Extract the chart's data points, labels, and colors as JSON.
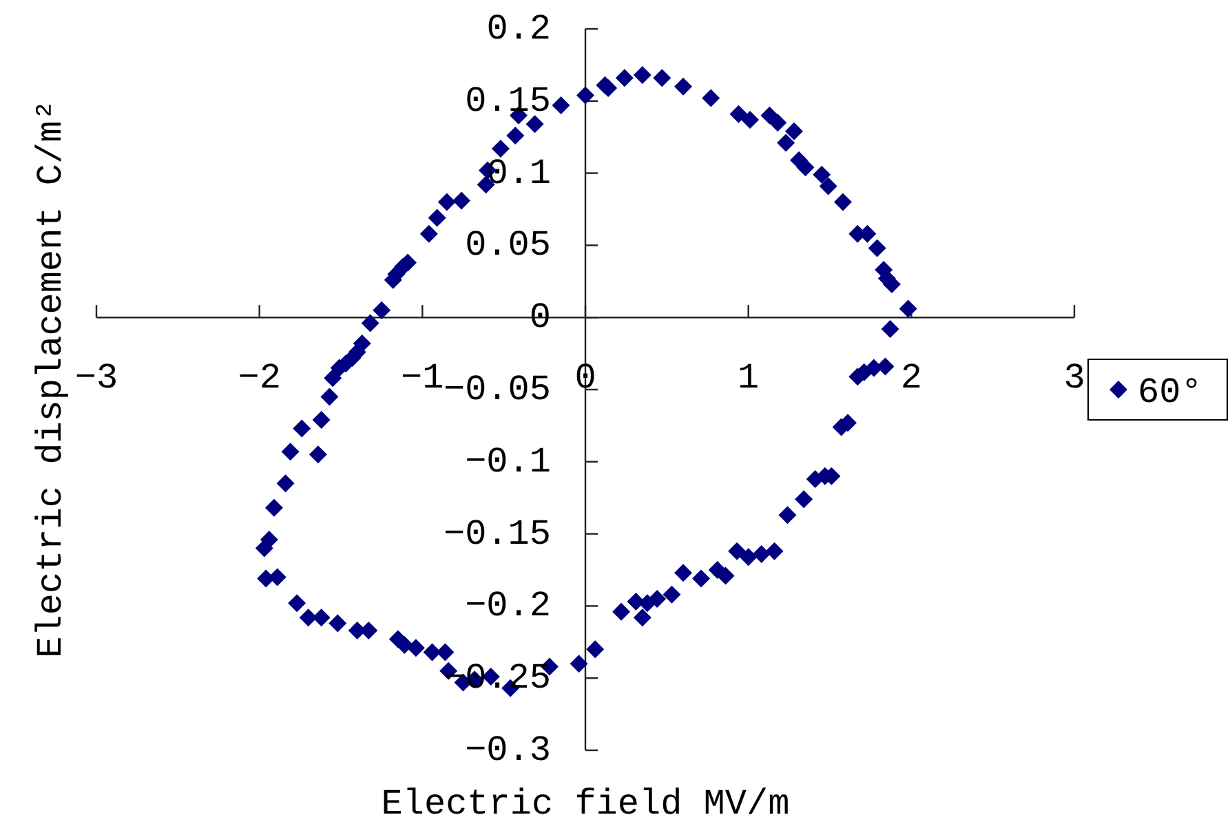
{
  "chart_data": {
    "type": "scatter",
    "xlabel": "Electric field MV/m",
    "ylabel": "Electric displacement C/m²",
    "legend": "right",
    "marker": "diamond",
    "xlim": [
      -3,
      3
    ],
    "ylim": [
      -0.3,
      0.2
    ],
    "xticks": [
      -3,
      -2,
      -1,
      0,
      1,
      2,
      3
    ],
    "yticks": [
      -0.3,
      -0.25,
      -0.2,
      -0.15,
      -0.1,
      -0.05,
      0,
      0.05,
      0.1,
      0.15,
      0.2
    ],
    "x": [
      -1.37,
      -1.4,
      -1.43,
      -1.47,
      -1.51,
      -1.55,
      -1.57,
      -1.62,
      -1.74,
      -1.64,
      -1.81,
      -1.84,
      -1.91,
      -1.94,
      -1.97,
      -1.96,
      -1.89,
      -1.77,
      -1.7,
      -1.62,
      -1.52,
      -1.4,
      -1.33,
      -1.15,
      -1.11,
      -1.04,
      -0.94,
      -0.86,
      -0.84,
      -0.75,
      -0.68,
      -0.58,
      -0.46,
      -0.22,
      -0.04,
      0.06,
      0.22,
      0.31,
      0.35,
      0.38,
      0.44,
      0.53,
      0.6,
      0.71,
      0.81,
      0.86,
      0.93,
      1.0,
      1.08,
      1.16,
      1.24,
      1.34,
      1.41,
      1.47,
      1.51,
      1.57,
      1.61,
      1.67,
      1.71,
      1.77,
      1.84,
      1.87,
      1.98,
      1.88,
      1.85,
      1.83,
      1.79,
      1.73,
      1.67,
      1.58,
      1.49,
      1.45,
      1.35,
      1.31,
      1.28,
      1.23,
      1.18,
      1.13,
      1.01,
      0.94,
      0.77,
      0.6,
      0.47,
      0.35,
      0.24,
      0.14,
      0.12,
      0.0,
      -0.15,
      -0.31,
      -0.41,
      -0.43,
      -0.52,
      -0.6,
      -0.61,
      -0.76,
      -0.85,
      -0.91,
      -0.96,
      -1.09,
      -1.12,
      -1.16,
      -1.18,
      -1.25,
      -1.32
    ],
    "series": [
      {
        "name": "60°",
        "color": "#000080",
        "values": [
          -0.018,
          -0.024,
          -0.028,
          -0.032,
          -0.035,
          -0.042,
          -0.055,
          -0.071,
          -0.077,
          -0.095,
          -0.093,
          -0.115,
          -0.132,
          -0.154,
          -0.16,
          -0.181,
          -0.18,
          -0.198,
          -0.208,
          -0.208,
          -0.212,
          -0.217,
          -0.217,
          -0.223,
          -0.227,
          -0.229,
          -0.232,
          -0.232,
          -0.245,
          -0.253,
          -0.251,
          -0.249,
          -0.257,
          -0.242,
          -0.24,
          -0.23,
          -0.204,
          -0.197,
          -0.208,
          -0.198,
          -0.195,
          -0.192,
          -0.177,
          -0.181,
          -0.175,
          -0.179,
          -0.162,
          -0.166,
          -0.164,
          -0.162,
          -0.137,
          -0.126,
          -0.112,
          -0.11,
          -0.11,
          -0.076,
          -0.073,
          -0.041,
          -0.038,
          -0.035,
          -0.034,
          -0.008,
          0.006,
          0.023,
          0.027,
          0.033,
          0.048,
          0.058,
          0.058,
          0.08,
          0.091,
          0.099,
          0.104,
          0.109,
          0.129,
          0.121,
          0.135,
          0.14,
          0.137,
          0.141,
          0.152,
          0.16,
          0.166,
          0.168,
          0.166,
          0.159,
          0.161,
          0.154,
          0.147,
          0.134,
          0.14,
          0.126,
          0.117,
          0.102,
          0.092,
          0.081,
          0.08,
          0.069,
          0.058,
          0.038,
          0.035,
          0.03,
          0.026,
          0.005,
          -0.004
        ]
      }
    ]
  }
}
